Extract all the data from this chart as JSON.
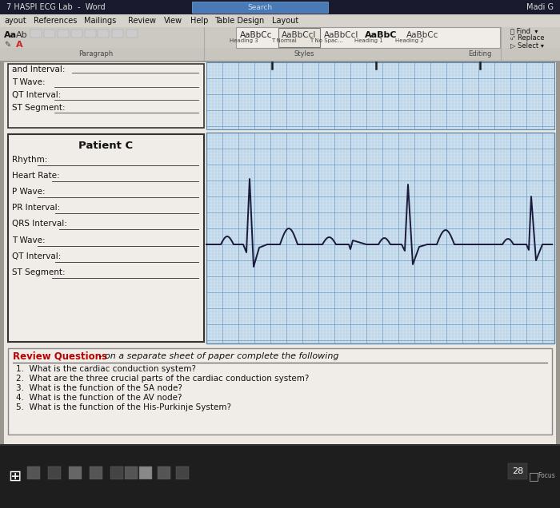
{
  "title_bar": "7 HASPI ECG Lab  -  Word",
  "title_bar_right": "Madi G",
  "bg_outer": "#7a7a7a",
  "bg_inner": "#d0ccc6",
  "doc_bg": "#ede9e2",
  "title_bar_bg": "#1a1a2e",
  "menu_bar_bg": "#d6d2cc",
  "ribbon_bg": "#ccc8c2",
  "ribbon_lower_bg": "#c8c4be",
  "styles_box_bg": "#f0ede8",
  "styles_box_border": "#999999",
  "top_partial_labels": [
    "T Wave:",
    "QT Interval:",
    "ST Segment:"
  ],
  "patient_c_title": "Patient C",
  "patient_c_labels": [
    "Rhythm:",
    "Heart Rate:",
    "P Wave:",
    "PR Interval:",
    "QRS Interval:",
    "T Wave:",
    "QT Interval:",
    "ST Segment:"
  ],
  "review_title_bold": "Review Questions",
  "review_title_rest": " - on a separate sheet of paper complete the following",
  "review_questions": [
    "What is the cardiac conduction system?",
    "What are the three crucial parts of the cardiac conduction system?",
    "What is the function of the SA node?",
    "What is the function of the AV node?",
    "What is the function of the His-Purkinje System?"
  ],
  "ecg_bg": "#cce0f0",
  "ecg_grid_minor": "#9bbcd8",
  "ecg_grid_major": "#6090bb",
  "ecg_line": "#1a1a3a",
  "box_bg": "#f0ede8",
  "box_border": "#333333",
  "review_bg": "#f0ede8",
  "review_border": "#888888",
  "red_color": "#bb0000",
  "text_dark": "#111111",
  "line_color": "#444444",
  "taskbar_bg": "#1e1e1e",
  "search_bg": "#4a7ab5",
  "search_text": "#ccddee"
}
